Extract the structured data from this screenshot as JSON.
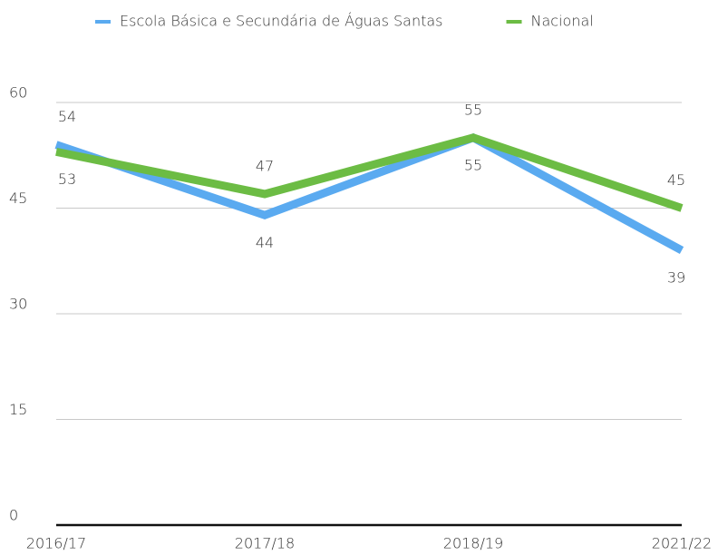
{
  "chart_data": {
    "type": "line",
    "categories": [
      "2016/17",
      "2017/18",
      "2018/19",
      "2021/22"
    ],
    "series": [
      {
        "name": "Escola Básica e Secundária de Águas Santas",
        "color": "#5aaaf0",
        "values": [
          54,
          44,
          55,
          39
        ]
      },
      {
        "name": "Nacional",
        "color": "#6cbc44",
        "values": [
          53,
          47,
          55,
          45
        ]
      }
    ],
    "ylim": [
      0,
      60
    ],
    "yticks": [
      0,
      15,
      30,
      45,
      60
    ],
    "grid": true,
    "legend": "top"
  }
}
